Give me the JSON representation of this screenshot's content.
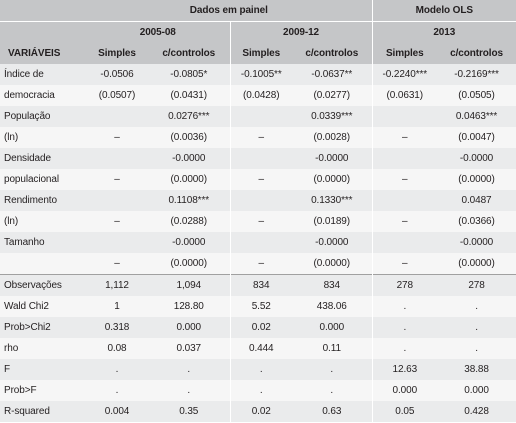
{
  "header": {
    "groups": [
      "Dados em painel",
      "Modelo OLS"
    ],
    "periods": [
      "2005-08",
      "2009-12",
      "2013"
    ],
    "row_header": "VARIÁVEIS",
    "columns": [
      "Simples",
      "c/controlos",
      "Simples",
      "c/controlos",
      "Simples",
      "c/controlos"
    ]
  },
  "rows": [
    {
      "label": "Índice de",
      "cells": [
        "-0.0506",
        "-0.0805*",
        "-0.1005**",
        "-0.0637**",
        "-0.2240***",
        "-0.2169***"
      ]
    },
    {
      "label": "democracia",
      "cells": [
        "(0.0507)",
        "(0.0431)",
        "(0.0428)",
        "(0.0277)",
        "(0.0631)",
        "(0.0505)"
      ]
    },
    {
      "label": "População",
      "cells": [
        "",
        "0.0276***",
        "",
        "0.0339***",
        "",
        "0.0463***"
      ]
    },
    {
      "label": "(ln)",
      "cells": [
        "–",
        "(0.0036)",
        "–",
        "(0.0028)",
        "–",
        "(0.0047)"
      ]
    },
    {
      "label": "Densidade",
      "cells": [
        "",
        "-0.0000",
        "",
        "-0.0000",
        "",
        "-0.0000"
      ]
    },
    {
      "label": "populacional",
      "cells": [
        "–",
        "(0.0000)",
        "–",
        "(0.0000)",
        "–",
        "(0.0000)"
      ]
    },
    {
      "label": "Rendimento",
      "cells": [
        "",
        "0.1108***",
        "",
        "0.1330***",
        "",
        "0.0487"
      ]
    },
    {
      "label": "(ln)",
      "cells": [
        "–",
        "(0.0288)",
        "–",
        "(0.0189)",
        "–",
        "(0.0366)"
      ]
    },
    {
      "label": "Tamanho",
      "cells": [
        "",
        "-0.0000",
        "",
        "-0.0000",
        "",
        "-0.0000"
      ]
    },
    {
      "label": "",
      "cells": [
        "–",
        "(0.0000)",
        "–",
        "(0.0000)",
        "–",
        "(0.0000)"
      ]
    },
    {
      "label": "Observações",
      "cells": [
        "1,112",
        "1,094",
        "834",
        "834",
        "278",
        "278"
      ]
    },
    {
      "label": "Wald Chi2",
      "cells": [
        "1",
        "128.80",
        "5.52",
        "438.06",
        ".",
        "."
      ]
    },
    {
      "label": "Prob>Chi2",
      "cells": [
        "0.318",
        "0.000",
        "0.02",
        "0.000",
        ".",
        "."
      ]
    },
    {
      "label": "rho",
      "cells": [
        "0.08",
        "0.037",
        "0.444",
        "0.11",
        ".",
        "."
      ]
    },
    {
      "label": "F",
      "cells": [
        ".",
        ".",
        ".",
        ".",
        "12.63",
        "38.88"
      ]
    },
    {
      "label": "Prob>F",
      "cells": [
        ".",
        ".",
        ".",
        ".",
        "0.000",
        "0.000"
      ]
    },
    {
      "label": "R-squared",
      "cells": [
        "0.004",
        "0.35",
        "0.02",
        "0.63",
        "0.05",
        "0.428"
      ]
    }
  ]
}
